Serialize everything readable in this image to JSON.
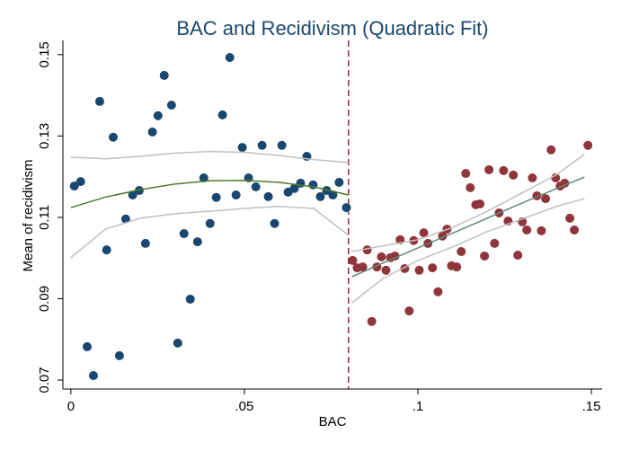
{
  "chart_data": {
    "type": "scatter",
    "title": "BAC and Recidivism (Quadratic Fit)",
    "x_label": "BAC",
    "y_label": "Mean of recidivism",
    "xlim": [
      -0.0023,
      0.1531
    ],
    "ylim": [
      0.0678,
      0.1535
    ],
    "xticks": [
      0,
      {
        "value": 0.05,
        "label": ".05"
      },
      {
        "value": 0.1,
        "label": ".1"
      },
      {
        "value": 0.15,
        "label": ".15"
      }
    ],
    "yticks": [
      0.07,
      0.09,
      0.11,
      0.13,
      0.15
    ],
    "vline": 0.08,
    "vline_color": "#a0253b",
    "series": [
      {
        "style": "markers",
        "color": "#1a476f",
        "x": [
          0.001,
          0.0028,
          0.0047,
          0.0065,
          0.0083,
          0.0103,
          0.0122,
          0.014,
          0.0158,
          0.0178,
          0.0197,
          0.0215,
          0.0235,
          0.0251,
          0.0269,
          0.029,
          0.0308,
          0.0326,
          0.0344,
          0.0365,
          0.0383,
          0.0401,
          0.0419,
          0.0437,
          0.0458,
          0.0476,
          0.0494,
          0.0512,
          0.0533,
          0.0551,
          0.0569,
          0.0587,
          0.0608,
          0.0626,
          0.0644,
          0.0662,
          0.068,
          0.0698,
          0.0719,
          0.0737,
          0.0755,
          0.0773,
          0.0794
        ],
        "values": [
          0.1177,
          0.1188,
          0.0782,
          0.0711,
          0.1385,
          0.102,
          0.1297,
          0.076,
          0.1096,
          0.1155,
          0.1166,
          0.1036,
          0.131,
          0.135,
          0.1449,
          0.1376,
          0.0791,
          0.106,
          0.0899,
          0.104,
          0.1197,
          0.1085,
          0.1149,
          0.1352,
          0.1493,
          0.1155,
          0.1272,
          0.1197,
          0.1175,
          0.1277,
          0.1151,
          0.1085,
          0.1277,
          0.1162,
          0.1171,
          0.1184,
          0.125,
          0.118,
          0.1151,
          0.1166,
          0.1155,
          0.1186,
          0.1124
        ]
      },
      {
        "style": "markers",
        "color": "#90353b",
        "x": [
          0.0812,
          0.0825,
          0.0841,
          0.0854,
          0.0867,
          0.0882,
          0.0895,
          0.0908,
          0.0921,
          0.0934,
          0.0949,
          0.0962,
          0.0975,
          0.0988,
          0.1004,
          0.1017,
          0.1029,
          0.1042,
          0.1058,
          0.1071,
          0.1084,
          0.1097,
          0.1112,
          0.1125,
          0.1138,
          0.1151,
          0.1167,
          0.1179,
          0.1192,
          0.1205,
          0.1221,
          0.1234,
          0.1247,
          0.126,
          0.1275,
          0.1288,
          0.1301,
          0.1314,
          0.133,
          0.1343,
          0.1356,
          0.1368,
          0.1384,
          0.1397,
          0.141,
          0.1423,
          0.1438,
          0.1451,
          0.149
        ],
        "values": [
          0.0994,
          0.0976,
          0.0978,
          0.102,
          0.0844,
          0.0978,
          0.1003,
          0.097,
          0.1001,
          0.1005,
          0.1045,
          0.0974,
          0.087,
          0.1043,
          0.097,
          0.1062,
          0.1036,
          0.0976,
          0.0917,
          0.1054,
          0.1071,
          0.0981,
          0.0978,
          0.1016,
          0.1208,
          0.1173,
          0.1131,
          0.1133,
          0.1005,
          0.1217,
          0.1036,
          0.1111,
          0.1215,
          0.1091,
          0.1204,
          0.1007,
          0.1089,
          0.1069,
          0.1197,
          0.1153,
          0.1067,
          0.1146,
          0.1266,
          0.1197,
          0.1177,
          0.1184,
          0.1098,
          0.1069,
          0.1277
        ]
      },
      {
        "style": "line",
        "color": "#c0c0c0",
        "x": [
          0,
          0.01,
          0.02,
          0.03,
          0.04,
          0.05,
          0.06,
          0.07,
          0.08
        ],
        "values": [
          0.1248,
          0.1244,
          0.125,
          0.1258,
          0.1262,
          0.126,
          0.1252,
          0.1242,
          0.1235
        ]
      },
      {
        "style": "line",
        "color": "#c0c0c0",
        "x": [
          0,
          0.01,
          0.02,
          0.03,
          0.04,
          0.05,
          0.06,
          0.07,
          0.08
        ],
        "values": [
          0.1001,
          0.1071,
          0.1098,
          0.1109,
          0.1115,
          0.1122,
          0.1127,
          0.1122,
          0.1056
        ]
      },
      {
        "style": "line",
        "color": "#4e7a2a",
        "x": [
          0,
          0.01,
          0.02,
          0.03,
          0.04,
          0.05,
          0.06,
          0.07,
          0.08
        ],
        "values": [
          0.1124,
          0.115,
          0.1168,
          0.1182,
          0.119,
          0.1191,
          0.1186,
          0.1175,
          0.1155
        ]
      },
      {
        "style": "line",
        "color": "#c0c0c0",
        "x": [
          0.081,
          0.09,
          0.1,
          0.11,
          0.12,
          0.13,
          0.14,
          0.148
        ],
        "values": [
          0.1016,
          0.103,
          0.1045,
          0.1075,
          0.1115,
          0.116,
          0.1205,
          0.1255
        ]
      },
      {
        "style": "line",
        "color": "#c0c0c0",
        "x": [
          0.081,
          0.09,
          0.1,
          0.11,
          0.12,
          0.13,
          0.14,
          0.148
        ],
        "values": [
          0.089,
          0.095,
          0.0994,
          0.1027,
          0.1065,
          0.1096,
          0.1127,
          0.1146
        ]
      },
      {
        "style": "line",
        "color": "#5f8a76",
        "x": [
          0.081,
          0.09,
          0.1,
          0.11,
          0.12,
          0.13,
          0.14,
          0.148
        ],
        "values": [
          0.0954,
          0.0988,
          0.1025,
          0.1061,
          0.1098,
          0.1135,
          0.1171,
          0.1199
        ]
      }
    ]
  }
}
